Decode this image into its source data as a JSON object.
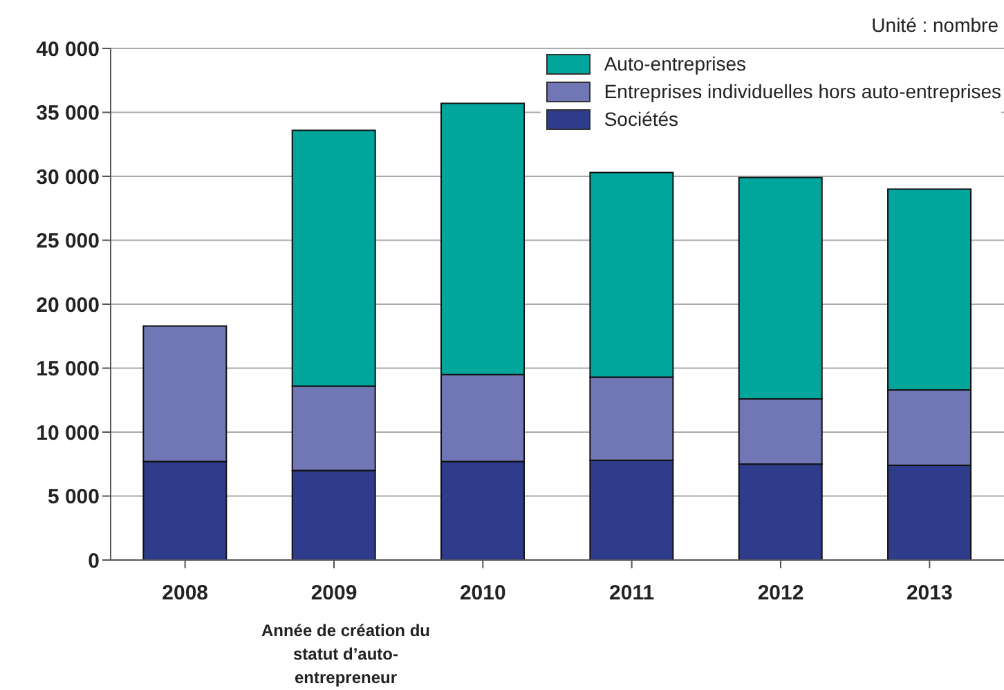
{
  "chart_data": {
    "type": "bar",
    "stacked": true,
    "categories": [
      "2008",
      "2009",
      "2010",
      "2011",
      "2012",
      "2013"
    ],
    "series": [
      {
        "name": "Sociétés",
        "color": "#2f3c8c",
        "values": [
          7700,
          7000,
          7700,
          7800,
          7500,
          7400
        ]
      },
      {
        "name": "Entreprises individuelles hors auto-entreprises",
        "color": "#7077b4",
        "values": [
          10600,
          6600,
          6800,
          6500,
          5100,
          5900
        ]
      },
      {
        "name": "Auto-entreprises",
        "color": "#00a69c",
        "values": [
          null,
          20000,
          21200,
          16000,
          17300,
          15700
        ]
      }
    ],
    "ylim": [
      0,
      40000
    ],
    "yticks": [
      {
        "value": 0,
        "label": "0"
      },
      {
        "value": 5000,
        "label": "5 000"
      },
      {
        "value": 10000,
        "label": "10 000"
      },
      {
        "value": 15000,
        "label": "15 000"
      },
      {
        "value": 20000,
        "label": "20 000"
      },
      {
        "value": 25000,
        "label": "25 000"
      },
      {
        "value": 30000,
        "label": "30 000"
      },
      {
        "value": 35000,
        "label": "35 000"
      },
      {
        "value": 40000,
        "label": "40 000"
      }
    ],
    "grid": "y",
    "legend": "top right",
    "annotations": [
      "Unité : nombre",
      "Année de création du statut d’auto-entrepreneur"
    ]
  }
}
